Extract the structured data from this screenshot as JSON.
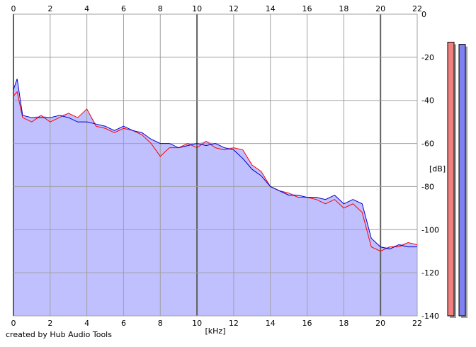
{
  "chart_data": {
    "type": "area",
    "xlabel": "[kHz]",
    "ylabel": "[dB]",
    "xlim": [
      0,
      22
    ],
    "ylim": [
      -140,
      0
    ],
    "x_ticks": [
      0,
      2,
      4,
      6,
      8,
      10,
      12,
      14,
      16,
      18,
      20,
      22
    ],
    "y_ticks": [
      0,
      -20,
      -40,
      -60,
      -80,
      -100,
      -120,
      -140
    ],
    "y_tick_labels": [
      "0",
      "-20",
      "-40",
      "-60",
      "-80",
      "-100",
      "-120",
      "-140"
    ],
    "grid": true,
    "series": [
      {
        "color": "#ff0000",
        "x": [
          0,
          0.2,
          0.5,
          1,
          1.5,
          2,
          2.5,
          3,
          3.5,
          4,
          4.5,
          5,
          5.5,
          6,
          6.5,
          7,
          7.5,
          8,
          8.5,
          9,
          9.5,
          10,
          10.5,
          11,
          11.5,
          12,
          12.5,
          13,
          13.5,
          14,
          14.5,
          15,
          15.5,
          16,
          16.5,
          17,
          17.5,
          18,
          18.5,
          19,
          19.5,
          20,
          20.5,
          21,
          21.5,
          22
        ],
        "y": [
          -38,
          -36,
          -48,
          -50,
          -47,
          -50,
          -48,
          -46,
          -48,
          -44,
          -52,
          -53,
          -55,
          -53,
          -54,
          -56,
          -60,
          -66,
          -62,
          -62,
          -60,
          -62,
          -59,
          -62,
          -63,
          -62,
          -63,
          -70,
          -73,
          -80,
          -82,
          -83,
          -85,
          -85,
          -86,
          -88,
          -86,
          -90,
          -88,
          -92,
          -108,
          -110,
          -108,
          -108,
          -106,
          -107
        ]
      },
      {
        "color": "#0000cc",
        "x": [
          0,
          0.2,
          0.5,
          1,
          1.5,
          2,
          2.5,
          3,
          3.5,
          4,
          4.5,
          5,
          5.5,
          6,
          6.5,
          7,
          7.5,
          8,
          8.5,
          9,
          9.5,
          10,
          10.5,
          11,
          11.5,
          12,
          12.5,
          13,
          13.5,
          14,
          14.5,
          15,
          15.5,
          16,
          16.5,
          17,
          17.5,
          18,
          18.5,
          19,
          19.5,
          20,
          20.5,
          21,
          21.5,
          22
        ],
        "y": [
          -35,
          -30,
          -47,
          -48,
          -48,
          -48,
          -47,
          -48,
          -50,
          -50,
          -51,
          -52,
          -54,
          -52,
          -54,
          -55,
          -58,
          -60,
          -60,
          -62,
          -61,
          -60,
          -61,
          -60,
          -62,
          -63,
          -67,
          -72,
          -75,
          -80,
          -82,
          -84,
          -84,
          -85,
          -85,
          -86,
          -84,
          -88,
          -86,
          -88,
          -104,
          -108,
          -109,
          -107,
          -108,
          -108
        ]
      }
    ],
    "fill_color": "#c0c0ff",
    "level_meters": [
      {
        "color": "#f08080",
        "value": -13
      },
      {
        "color": "#8080f0",
        "value": -14
      }
    ]
  },
  "footer": {
    "credit": "created by Hub Audio Tools"
  }
}
